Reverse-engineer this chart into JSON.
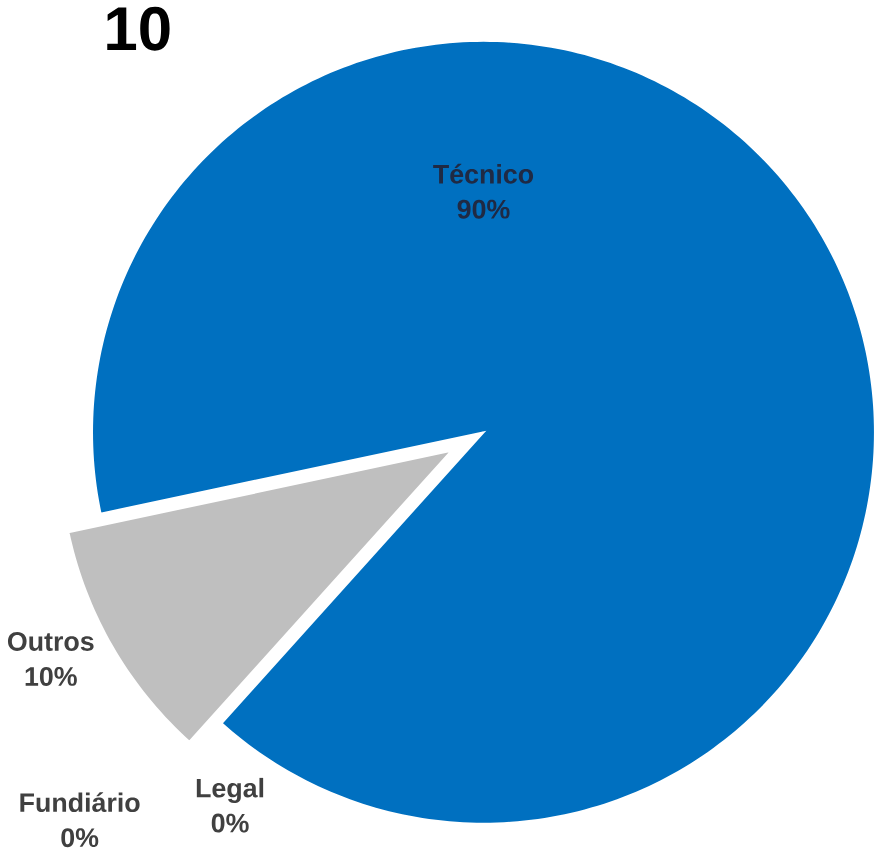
{
  "chart_data": {
    "type": "pie",
    "title": "10",
    "categories": [
      "Outros",
      "Fundiário",
      "Legal",
      "Técnico"
    ],
    "values": [
      10,
      0,
      0,
      90
    ],
    "value_labels": [
      "10%",
      "0%",
      "0%",
      "90%"
    ],
    "colors": [
      "#bfbfbf",
      "#a5a5a5",
      "#7f7f7f",
      "#0070c0"
    ]
  }
}
